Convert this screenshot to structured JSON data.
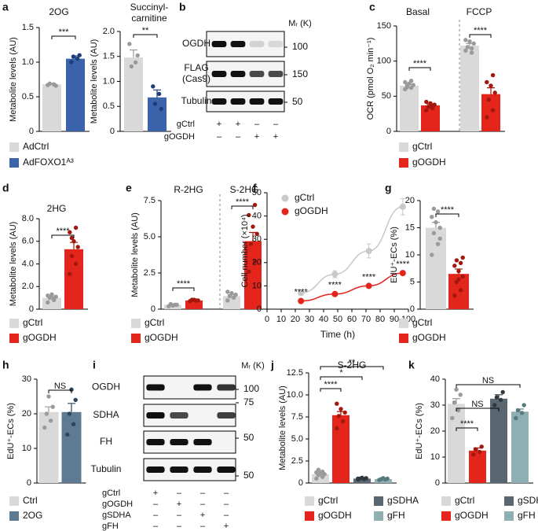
{
  "chart_data": [
    {
      "type": "bar",
      "panel": "a",
      "title": "2OG",
      "ylabel": "Metabolite levels (AU)",
      "ylim": [
        0,
        1.5
      ],
      "yticks": [
        0,
        0.5,
        {
          "value": 1,
          "label": "1.0"
        },
        1.5
      ],
      "series": [
        {
          "name": "AdCtrl",
          "color": "#d9d9d9",
          "point_color": "#9a9a9a",
          "values": [
            0.68
          ],
          "errors": [
            0.01
          ],
          "points": [
            [
              0.67,
              0.68,
              0.69,
              0.66
            ]
          ]
        },
        {
          "name": "AdFOXO1ᴬ³",
          "color": "#3b63aa",
          "point_color": "#1d3d78",
          "values": [
            1.05
          ],
          "errors": [
            0.04
          ],
          "points": [
            [
              1.0,
              1.05,
              1.08,
              1.1
            ]
          ]
        }
      ],
      "significance": [
        "***"
      ]
    },
    {
      "type": "bar",
      "title": [
        "Succinyl-",
        "carnitine"
      ],
      "ylabel": "Metabolite levels (AU)",
      "ylim": [
        0,
        2
      ],
      "yticks": [
        0,
        0.5,
        {
          "value": 1,
          "label": "1.0"
        },
        1.5,
        {
          "value": 2,
          "label": "2.0"
        }
      ],
      "series": [
        {
          "name": "AdCtrl",
          "color": "#d9d9d9",
          "point_color": "#9a9a9a",
          "values": [
            1.48
          ],
          "errors": [
            0.15
          ],
          "points": [
            [
              1.75,
              1.38,
              1.3,
              1.52
            ]
          ]
        },
        {
          "name": "AdFOXO1ᴬ³",
          "color": "#3b63aa",
          "point_color": "#1d3d78",
          "values": [
            0.68
          ],
          "errors": [
            0.15
          ],
          "points": [
            [
              0.9,
              0.75,
              0.55,
              0.45
            ]
          ]
        }
      ],
      "significance": [
        "**"
      ],
      "legend": true
    },
    {
      "type": "bar",
      "panel": "c",
      "groups": [
        "Basal",
        "FCCP"
      ],
      "ylabel": "OCR (pmol O₂ min⁻¹)",
      "ylim": [
        0,
        150
      ],
      "yticks": [
        0,
        50,
        100,
        150
      ],
      "series": [
        {
          "name": "gCtrl",
          "color": "#d9d9d9",
          "point_color": "#9a9a9a",
          "values": [
            65,
            122
          ],
          "errors": [
            2,
            3
          ],
          "points": [
            [
              60,
              62,
              65,
              66,
              68,
              70,
              72,
              63
            ],
            [
              115,
              118,
              120,
              125,
              128,
              130,
              112
            ]
          ]
        },
        {
          "name": "gOGDH",
          "color": "#e3251c",
          "point_color": "#a3170f",
          "values": [
            37,
            53
          ],
          "errors": [
            2,
            9
          ],
          "points": [
            [
              30,
              33,
              35,
              38,
              40,
              42,
              36
            ],
            [
              20,
              30,
              45,
              55,
              65,
              70,
              80
            ]
          ]
        }
      ],
      "significance": [
        "****",
        "****"
      ],
      "legend": true
    },
    {
      "type": "bar",
      "panel": "d",
      "title": "2HG",
      "ylabel": "Metabolite levels (AU)",
      "ylim": [
        0,
        8
      ],
      "yticks": [
        0,
        {
          "value": 2,
          "label": "2.0"
        },
        {
          "value": 4,
          "label": "4.0"
        },
        {
          "value": 6,
          "label": "6.0"
        },
        {
          "value": 8,
          "label": "8.0"
        }
      ],
      "series": [
        {
          "name": "gCtrl",
          "color": "#d9d9d9",
          "point_color": "#9a9a9a",
          "values": [
            1.0
          ],
          "errors": [
            0.1
          ],
          "points": [
            [
              0.6,
              0.8,
              1.0,
              1.1,
              1.3,
              1.2,
              0.9
            ]
          ]
        },
        {
          "name": "gOGDH",
          "color": "#e3251c",
          "point_color": "#a3170f",
          "values": [
            5.3
          ],
          "errors": [
            0.6
          ],
          "points": [
            [
              3.1,
              4.0,
              4.7,
              5.5,
              6.0,
              6.8,
              7.2,
              6.3
            ]
          ]
        }
      ],
      "significance": [
        "****"
      ],
      "legend": true
    },
    {
      "type": "bar",
      "panel": "e",
      "groups": [
        "R-2HG",
        "S-2HG"
      ],
      "ylabel": "Metabolite levels (AU)",
      "ylim": [
        0,
        7.5
      ],
      "yticks": [
        0,
        2.5,
        {
          "value": 5,
          "label": "5.0"
        },
        7.5
      ],
      "series": [
        {
          "name": "gCtrl",
          "color": "#d9d9d9",
          "point_color": "#9a9a9a",
          "values": [
            0.3,
            0.9
          ],
          "errors": [
            0.05,
            0.1
          ],
          "points": [
            [
              0.2,
              0.3,
              0.35,
              0.3,
              0.25
            ],
            [
              0.6,
              0.8,
              0.9,
              1.0,
              1.1,
              1.2
            ]
          ]
        },
        {
          "name": "gOGDH",
          "color": "#e3251c",
          "point_color": "#a3170f",
          "values": [
            0.6,
            4.7
          ],
          "errors": [
            0.04,
            0.6
          ],
          "points": [
            [
              0.55,
              0.6,
              0.65,
              0.6,
              0.65
            ],
            [
              2.6,
              3.3,
              4.5,
              5.2,
              5.7,
              6.5,
              7.2
            ]
          ]
        }
      ],
      "significance": [
        "****",
        "****"
      ],
      "legend": true
    },
    {
      "type": "line",
      "panel": "f",
      "xlabel": "Time (h)",
      "ylabel": "Cell number (×10⁴)",
      "xlim": [
        0,
        100
      ],
      "xticks": [
        0,
        10,
        20,
        30,
        40,
        50,
        60,
        70,
        80,
        90,
        100
      ],
      "ylim": [
        0,
        50
      ],
      "yticks": [
        0,
        10,
        20,
        30,
        40,
        50
      ],
      "series": [
        {
          "name": "gCtrl",
          "color": "#c8c8c8",
          "x": [
            24,
            48,
            72,
            96
          ],
          "values": [
            7,
            15,
            25,
            44
          ],
          "errors": [
            1,
            1.5,
            3,
            3.5
          ]
        },
        {
          "name": "gOGDH",
          "color": "#e3251c",
          "x": [
            24,
            48,
            72,
            96
          ],
          "values": [
            3.5,
            6.5,
            10,
            15.5
          ],
          "errors": [
            0.3,
            0.5,
            0.6,
            0.8
          ],
          "significance": [
            "****",
            "****",
            "****",
            "****"
          ]
        }
      ]
    },
    {
      "type": "bar",
      "panel": "g",
      "ylabel": "EdU⁺-ECs (%)",
      "ylim": [
        0,
        20
      ],
      "yticks": [
        0,
        5,
        10,
        15,
        20
      ],
      "series": [
        {
          "name": "gCtrl",
          "color": "#d9d9d9",
          "point_color": "#9a9a9a",
          "values": [
            15
          ],
          "errors": [
            1
          ],
          "points": [
            [
              10,
              12,
              14,
              15,
              16,
              17,
              18,
              18.5,
              13
            ]
          ]
        },
        {
          "name": "gOGDH",
          "color": "#e3251c",
          "point_color": "#a3170f",
          "values": [
            6.5
          ],
          "errors": [
            0.9
          ],
          "points": [
            [
              2.5,
              3.5,
              5,
              6,
              7,
              8,
              8.5,
              9,
              9.5,
              5.5
            ]
          ]
        }
      ],
      "significance": [
        "****"
      ],
      "legend": true
    },
    {
      "type": "bar",
      "panel": "h",
      "ylabel": "EdU⁺-ECs (%)",
      "ylim": [
        0,
        30
      ],
      "yticks": [
        0,
        10,
        20,
        30
      ],
      "series": [
        {
          "name": "Ctrl",
          "color": "#d9d9d9",
          "point_color": "#9a9a9a",
          "values": [
            20.5
          ],
          "errors": [
            1.5
          ],
          "points": [
            [
              16,
              18,
              20,
              22,
              25
            ]
          ]
        },
        {
          "name": "2OG",
          "color": "#5f7b94",
          "point_color": "#2e465c",
          "values": [
            20.5
          ],
          "errors": [
            2.5
          ],
          "points": [
            [
              14,
              17,
              20,
              24,
              27
            ]
          ]
        }
      ],
      "significance": [
        "NS"
      ],
      "legend": true
    },
    {
      "type": "bar",
      "panel": "j",
      "title": "S-2HG",
      "ylabel": "Metabolite levels (AU)",
      "ylim": [
        0,
        12.5
      ],
      "yticks": [
        0,
        2.5,
        {
          "value": 5,
          "label": "5.0"
        },
        7.5,
        {
          "value": 10,
          "label": "10.0"
        },
        12.5
      ],
      "series": [
        {
          "name": "gCtrl",
          "color": "#d9d9d9",
          "point_color": "#9a9a9a",
          "values": [
            1.0
          ],
          "errors": [
            0.1
          ],
          "points": [
            [
              0.5,
              0.7,
              0.9,
              1.0,
              1.1,
              1.2,
              1.3,
              1.5
            ]
          ]
        },
        {
          "name": "gOGDH",
          "color": "#e3251c",
          "point_color": "#a3170f",
          "values": [
            7.7
          ],
          "errors": [
            0.4
          ],
          "points": [
            [
              6.2,
              7.0,
              7.6,
              8.0,
              8.4,
              9.0
            ]
          ]
        },
        {
          "name": "gSDHA",
          "color": "#5a6670",
          "point_color": "#2f383f",
          "values": [
            0.5
          ],
          "errors": [
            0.04
          ],
          "points": [
            [
              0.4,
              0.45,
              0.5,
              0.55,
              0.6,
              0.5
            ]
          ]
        },
        {
          "name": "gFH",
          "color": "#8fb0b3",
          "point_color": "#587a7e",
          "values": [
            0.45
          ],
          "errors": [
            0.04
          ],
          "points": [
            [
              0.35,
              0.4,
              0.45,
              0.5,
              0.55
            ]
          ]
        }
      ],
      "significance": [
        "****",
        "*",
        "**"
      ],
      "legend": true
    },
    {
      "type": "bar",
      "panel": "k",
      "ylabel": "EdU⁺-ECs (%)",
      "ylim": [
        0,
        40
      ],
      "yticks": [
        0,
        10,
        20,
        30,
        40
      ],
      "series": [
        {
          "name": "gCtrl",
          "color": "#d9d9d9",
          "point_color": "#9a9a9a",
          "values": [
            30.5
          ],
          "errors": [
            2
          ],
          "points": [
            [
              25,
              28,
              31,
              34,
              36
            ]
          ]
        },
        {
          "name": "gOGDH",
          "color": "#e3251c",
          "point_color": "#a3170f",
          "values": [
            12.5
          ],
          "errors": [
            1
          ],
          "points": [
            [
              11,
              12,
              13,
              14
            ]
          ]
        },
        {
          "name": "gSDHA",
          "color": "#5a6670",
          "point_color": "#2f383f",
          "values": [
            32.5
          ],
          "errors": [
            1.5
          ],
          "points": [
            [
              30,
              32,
              33,
              35
            ]
          ]
        },
        {
          "name": "gFH",
          "color": "#8fb0b3",
          "point_color": "#587a7e",
          "values": [
            27.5
          ],
          "errors": [
            1
          ],
          "points": [
            [
              25,
              27,
              28,
              30
            ]
          ]
        }
      ],
      "significance": [
        "****",
        "NS",
        "NS"
      ],
      "legend": true
    }
  ],
  "blots": [
    {
      "panel": "b",
      "mr_label": "Mᵣ (K)",
      "bands": [
        {
          "label": [
            "OGDH"
          ],
          "mr": 100
        },
        {
          "label": [
            "FLAG",
            "(Cas9)"
          ],
          "mr": 150
        },
        {
          "label": [
            "Tubulin"
          ],
          "mr": 50
        }
      ],
      "conditions": [
        {
          "label": "gCtrl",
          "lanes": [
            "+",
            "+",
            "–",
            "–"
          ]
        },
        {
          "label": "gOGDH",
          "lanes": [
            "–",
            "–",
            "+",
            "+"
          ]
        }
      ]
    },
    {
      "panel": "i",
      "mr_label": "Mᵣ (K)",
      "bands": [
        {
          "label": [
            "OGDH"
          ],
          "mr": 100
        },
        {
          "label": [
            "SDHA"
          ],
          "mr": 75
        },
        {
          "label": [
            "FH"
          ],
          "mr": 50
        },
        {
          "label": [
            "Tubulin"
          ],
          "mr": 50
        }
      ],
      "conditions": [
        {
          "label": "gCtrl",
          "lanes": [
            "+",
            "–",
            "–",
            "–"
          ]
        },
        {
          "label": "gOGDH",
          "lanes": [
            "–",
            "+",
            "–",
            "–"
          ]
        },
        {
          "label": "gSDHA",
          "lanes": [
            "–",
            "–",
            "+",
            "–"
          ]
        },
        {
          "label": "gFH",
          "lanes": [
            "–",
            "–",
            "–",
            "+"
          ]
        }
      ]
    }
  ]
}
